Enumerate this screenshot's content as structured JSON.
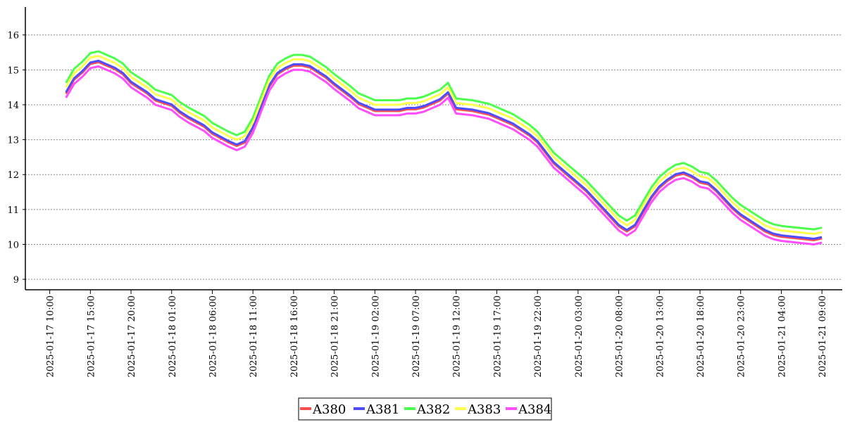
{
  "chart_data": {
    "type": "line",
    "x_tick_labels": [
      "2025-01-17 10:00",
      "2025-01-17 15:00",
      "2025-01-17 20:00",
      "2025-01-18 01:00",
      "2025-01-18 06:00",
      "2025-01-18 11:00",
      "2025-01-18 16:00",
      "2025-01-18 21:00",
      "2025-01-19 02:00",
      "2025-01-19 07:00",
      "2025-01-19 12:00",
      "2025-01-19 17:00",
      "2025-01-19 22:00",
      "2025-01-20 03:00",
      "2025-01-20 08:00",
      "2025-01-20 13:00",
      "2025-01-20 18:00",
      "2025-01-20 23:00",
      "2025-01-21 04:00",
      "2025-01-21 09:00"
    ],
    "y_ticks": [
      9,
      10,
      11,
      12,
      13,
      14,
      15,
      16
    ],
    "ylim": [
      8.7,
      16.8
    ],
    "xlim": [
      "2025-01-17 07:00",
      "2025-01-21 11:30"
    ],
    "grid": "horizontal dotted",
    "legend": "bottom-center",
    "base_series": {
      "x": [
        "2025-01-17 12:00",
        "2025-01-17 13:00",
        "2025-01-17 14:00",
        "2025-01-17 15:00",
        "2025-01-17 16:00",
        "2025-01-17 17:00",
        "2025-01-17 18:00",
        "2025-01-17 19:00",
        "2025-01-17 20:00",
        "2025-01-17 21:00",
        "2025-01-17 22:00",
        "2025-01-17 23:00",
        "2025-01-18 01:00",
        "2025-01-18 02:00",
        "2025-01-18 03:00",
        "2025-01-18 05:00",
        "2025-01-18 06:00",
        "2025-01-18 08:00",
        "2025-01-18 09:00",
        "2025-01-18 10:00",
        "2025-01-18 11:00",
        "2025-01-18 12:00",
        "2025-01-18 13:00",
        "2025-01-18 14:00",
        "2025-01-18 15:00",
        "2025-01-18 16:00",
        "2025-01-18 17:00",
        "2025-01-18 18:00",
        "2025-01-18 19:00",
        "2025-01-18 20:00",
        "2025-01-18 21:00",
        "2025-01-18 23:00",
        "2025-01-19 00:00",
        "2025-01-19 01:00",
        "2025-01-19 02:00",
        "2025-01-19 03:00",
        "2025-01-19 05:00",
        "2025-01-19 06:00",
        "2025-01-19 07:00",
        "2025-01-19 08:00",
        "2025-01-19 09:00",
        "2025-01-19 10:00",
        "2025-01-19 11:00",
        "2025-01-19 12:00",
        "2025-01-19 14:00",
        "2025-01-19 16:00",
        "2025-01-19 17:00",
        "2025-01-19 19:00",
        "2025-01-19 21:00",
        "2025-01-19 22:00",
        "2025-01-20 00:00",
        "2025-01-20 02:00",
        "2025-01-20 04:00",
        "2025-01-20 06:00",
        "2025-01-20 08:00",
        "2025-01-20 09:00",
        "2025-01-20 10:00",
        "2025-01-20 11:00",
        "2025-01-20 12:00",
        "2025-01-20 13:00",
        "2025-01-20 14:00",
        "2025-01-20 15:00",
        "2025-01-20 16:00",
        "2025-01-20 17:00",
        "2025-01-20 18:00",
        "2025-01-20 19:00",
        "2025-01-20 20:00",
        "2025-01-20 21:00",
        "2025-01-20 22:00",
        "2025-01-20 23:00",
        "2025-01-21 01:00",
        "2025-01-21 02:00",
        "2025-01-21 03:00",
        "2025-01-21 04:00",
        "2025-01-21 06:00",
        "2025-01-21 08:00",
        "2025-01-21 09:00"
      ],
      "y": [
        14.3,
        14.7,
        14.9,
        15.15,
        15.2,
        15.1,
        15.0,
        14.85,
        14.6,
        14.45,
        14.3,
        14.1,
        13.95,
        13.75,
        13.6,
        13.35,
        13.15,
        12.9,
        12.8,
        12.9,
        13.3,
        13.9,
        14.5,
        14.85,
        15.0,
        15.1,
        15.1,
        15.05,
        14.9,
        14.75,
        14.55,
        14.2,
        14.0,
        13.9,
        13.8,
        13.8,
        13.8,
        13.85,
        13.85,
        13.9,
        14.0,
        14.1,
        14.3,
        13.85,
        13.8,
        13.7,
        13.6,
        13.4,
        13.1,
        12.9,
        12.3,
        11.9,
        11.5,
        11.0,
        10.5,
        10.35,
        10.5,
        10.9,
        11.3,
        11.6,
        11.8,
        11.95,
        12.0,
        11.9,
        11.75,
        11.7,
        11.5,
        11.25,
        11.0,
        10.8,
        10.5,
        10.35,
        10.25,
        10.2,
        10.15,
        10.1,
        10.15
      ]
    },
    "series": [
      {
        "name": "A380",
        "color": "#ff4d4d",
        "offset": 0.02
      },
      {
        "name": "A381",
        "color": "#4d4dff",
        "offset": 0.06
      },
      {
        "name": "A382",
        "color": "#4dff4d",
        "offset": 0.33
      },
      {
        "name": "A383",
        "color": "#ffff4d",
        "offset": 0.2
      },
      {
        "name": "A384",
        "color": "#ff4dff",
        "offset": -0.1
      }
    ]
  }
}
